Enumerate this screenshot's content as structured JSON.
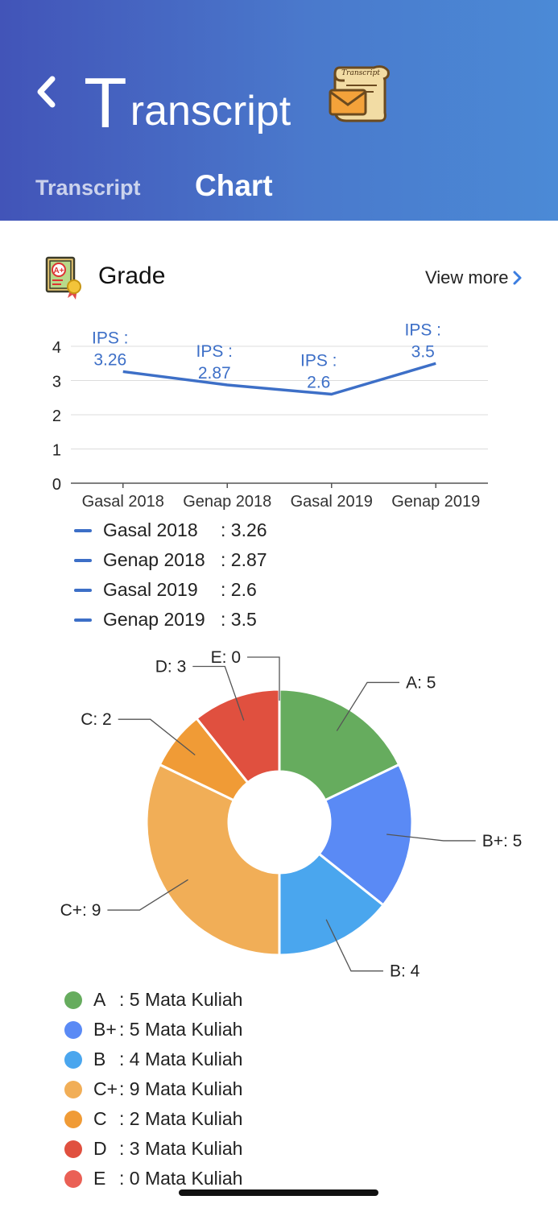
{
  "header": {
    "back_icon": "chevron-left-icon",
    "title_first": "T",
    "title_rest": "ranscript",
    "title_icon": "scroll-envelope-icon",
    "title_icon_text": "Transcript",
    "tabs": [
      {
        "label": "Transcript",
        "active": false
      },
      {
        "label": "Chart",
        "active": true
      }
    ]
  },
  "grade_section": {
    "icon": "a-plus-certificate-icon",
    "icon_text": "A+",
    "title": "Grade",
    "view_more": "View more",
    "view_more_icon": "chevron-right-icon"
  },
  "colors": {
    "line": "#3d6fc7",
    "header_start": "#4254b8",
    "header_end": "#4b8ad6",
    "pie": [
      "#66ac5e",
      "#5a8af5",
      "#4aa6ee",
      "#f1ae57",
      "#f09b36",
      "#e0503f",
      "#ea6055"
    ]
  },
  "chart_data": [
    {
      "type": "line",
      "categories": [
        "Gasal 2018",
        "Genap 2018",
        "Gasal 2019",
        "Genap 2019"
      ],
      "values": [
        3.26,
        2.87,
        2.6,
        3.5
      ],
      "ylim": [
        0,
        4
      ],
      "yticks": [
        "0",
        "1",
        "2",
        "3",
        "4"
      ],
      "grid": true,
      "data_labels": [
        "IPS :\n3.26",
        "IPS :\n2.87",
        "IPS :\n2.6",
        "IPS :\n3.5"
      ],
      "legend": [
        {
          "label": "Gasal 2018",
          "value": ": 3.26"
        },
        {
          "label": "Genap 2018",
          "value": ": 2.87"
        },
        {
          "label": "Gasal 2019",
          "value": ": 2.6"
        },
        {
          "label": "Genap 2019",
          "value": ": 3.5"
        }
      ]
    },
    {
      "type": "pie",
      "donut": true,
      "slices": [
        {
          "grade": "A",
          "value": 5,
          "label": "A: 5",
          "legend": ": 5 Mata Kuliah"
        },
        {
          "grade": "B+",
          "value": 5,
          "label": "B+: 5",
          "legend": ": 5 Mata Kuliah"
        },
        {
          "grade": "B",
          "value": 4,
          "label": "B: 4",
          "legend": ": 4 Mata Kuliah"
        },
        {
          "grade": "C+",
          "value": 9,
          "label": "C+: 9",
          "legend": ": 9 Mata Kuliah"
        },
        {
          "grade": "C",
          "value": 2,
          "label": "C: 2",
          "legend": ": 2 Mata Kuliah"
        },
        {
          "grade": "D",
          "value": 3,
          "label": "D: 3",
          "legend": ": 3 Mata Kuliah"
        },
        {
          "grade": "E",
          "value": 0,
          "label": "E: 0",
          "legend": ": 0 Mata Kuliah"
        }
      ]
    }
  ]
}
